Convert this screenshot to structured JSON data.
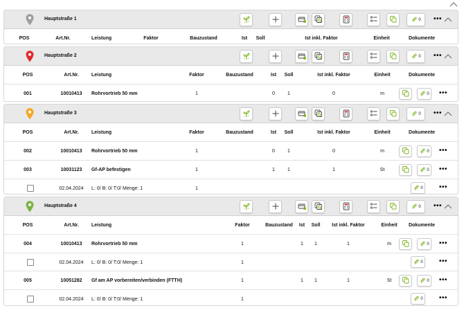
{
  "columns": {
    "pos": "POS",
    "art": "Art.Nr.",
    "leistung": "Leistung",
    "faktor": "Faktor",
    "bauzustand": "Bauzustand",
    "ist": "Ist",
    "soll": "Soll",
    "inkl": "Ist inkl. Faktor",
    "einheit": "Einheit",
    "dokumente": "Dokumente"
  },
  "icons": {
    "more": "•••",
    "toolbar": [
      "sprout-icon",
      "plus-icon",
      "card-icon",
      "copy-search-icon",
      "calculator-icon",
      "list-icon",
      "copy-icon",
      "paperclip-icon"
    ]
  },
  "colors": {
    "accent_green": "#7bb31a",
    "pin_gray": "#9e9e9e",
    "pin_red": "#e12a2a",
    "pin_orange": "#f5a623",
    "pin_green": "#7cb342"
  },
  "groups": [
    {
      "title": "Hauptstraße 1",
      "clip_count": "0",
      "rows": []
    },
    {
      "title": "Hauptstraße 2",
      "clip_count": "0",
      "rows": [
        {
          "type": "item",
          "pos": "001",
          "art": "10010413",
          "leistung": "Rohrvortrieb 50 mm",
          "faktor": "1",
          "ist": "0",
          "soll": "1",
          "inkl": "0",
          "einheit": "m",
          "docs": "0"
        }
      ]
    },
    {
      "title": "Hauptstraße 3",
      "clip_count": "0",
      "rows": [
        {
          "type": "item",
          "pos": "002",
          "art": "10010413",
          "leistung": "Rohrvortrieb 50 mm",
          "faktor": "1",
          "ist": "0",
          "soll": "1",
          "inkl": "0",
          "einheit": "m",
          "docs": "0"
        },
        {
          "type": "item",
          "pos": "003",
          "art": "10031123",
          "leistung": "Gf-AP befestigen",
          "faktor": "1",
          "ist": "1",
          "soll": "1",
          "inkl": "1",
          "einheit": "St",
          "docs": "0"
        },
        {
          "type": "sub",
          "date": "02.04.2024",
          "detail": "L: 0/ B: 0/ T:0/ Menge: 1",
          "faktor": "1",
          "docs": "0"
        }
      ]
    },
    {
      "title": "Hauptstraße 4",
      "clip_count": "0",
      "rows": [
        {
          "type": "item",
          "pos": "004",
          "art": "10010413",
          "leistung": "Rohrvortrieb 50 mm",
          "faktor": "1",
          "ist": "1",
          "soll": "1",
          "inkl": "1",
          "einheit": "m",
          "docs": "0"
        },
        {
          "type": "sub",
          "date": "02.04.2024",
          "detail": "L: 0/ B: 0/ T:0/ Menge: 1",
          "faktor": "1",
          "docs": "0"
        },
        {
          "type": "item",
          "pos": "005",
          "art": "10051282",
          "leistung": "Gf am AP vorbereiten/verbinden (FTTH)",
          "faktor": "1",
          "ist": "1",
          "soll": "1",
          "inkl": "1",
          "einheit": "St",
          "docs": "0"
        },
        {
          "type": "sub",
          "date": "02.04.2024",
          "detail": "L: 0/ B: 0/ T:0/ Menge: 1",
          "faktor": "1",
          "docs": "0"
        }
      ]
    }
  ]
}
